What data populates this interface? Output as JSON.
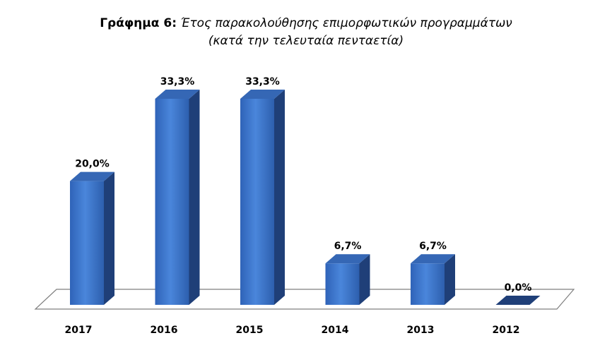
{
  "chart_data": {
    "type": "bar",
    "title_prefix": "Γράφημα 6:",
    "title_main": " Έτος παρακολούθησης επιμορφωτικών προγραμμάτων",
    "subtitle": "(κατά την τελευταία πενταετία)",
    "categories": [
      "2017",
      "2016",
      "2015",
      "2014",
      "2013",
      "2012"
    ],
    "values": [
      20.0,
      33.3,
      33.3,
      6.7,
      6.7,
      0.0
    ],
    "value_labels": [
      "20,0%",
      "33,3%",
      "33,3%",
      "6,7%",
      "6,7%",
      "0,0%"
    ],
    "ylim": [
      0,
      35
    ],
    "grid": false,
    "legend": "none",
    "colors": {
      "bar_front": "#3b78d0",
      "bar_front_light": "#4a86db",
      "bar_side": "#1f3f78",
      "bar_top": "#3567b5",
      "floor": "#ffffff",
      "floor_stroke": "#7f7f7f"
    }
  }
}
